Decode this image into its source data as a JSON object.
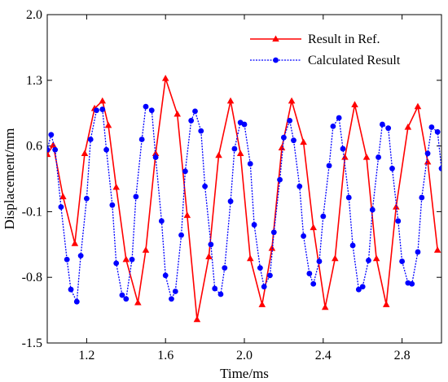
{
  "chart_data": {
    "type": "line",
    "title": "",
    "xlabel": "Time/ms",
    "ylabel": "Displacement/mm",
    "xlim": [
      1.0,
      3.0
    ],
    "ylim": [
      -1.5,
      2.0
    ],
    "x_ticks": [
      1.2,
      1.6,
      2.0,
      2.4,
      2.8
    ],
    "x_tick_labels": [
      "1.2",
      "1.6",
      "2.0",
      "2.4",
      "2.8"
    ],
    "y_ticks": [
      -1.5,
      -0.8,
      -0.1,
      0.6,
      1.3,
      2.0
    ],
    "y_tick_labels": [
      "-1.5",
      "-0.8",
      "-0.1",
      "0.6",
      "1.3",
      "2.0"
    ],
    "grid": false,
    "legend_position": "top-right",
    "series": [
      {
        "name": "Result in Ref.",
        "color": "#ff0000",
        "line_style": "solid",
        "marker": "triangle",
        "x": [
          1.0,
          1.03,
          1.08,
          1.14,
          1.19,
          1.24,
          1.28,
          1.31,
          1.35,
          1.4,
          1.46,
          1.5,
          1.55,
          1.6,
          1.66,
          1.71,
          1.76,
          1.82,
          1.87,
          1.93,
          1.98,
          2.03,
          2.09,
          2.14,
          2.19,
          2.24,
          2.3,
          2.35,
          2.41,
          2.46,
          2.51,
          2.56,
          2.62,
          2.67,
          2.72,
          2.77,
          2.83,
          2.88,
          2.93,
          2.98
        ],
        "y": [
          0.51,
          0.61,
          0.06,
          -0.44,
          0.52,
          1.0,
          1.08,
          0.82,
          0.16,
          -0.61,
          -1.07,
          -0.51,
          0.52,
          1.32,
          0.94,
          -0.14,
          -1.25,
          -0.58,
          0.5,
          1.08,
          0.52,
          -0.6,
          -1.09,
          -0.49,
          0.58,
          1.08,
          0.64,
          -0.27,
          -1.12,
          -0.6,
          0.48,
          1.04,
          0.48,
          -0.6,
          -1.09,
          -0.05,
          0.8,
          1.02,
          0.43,
          -0.51
        ]
      },
      {
        "name": "Calculated Result",
        "color": "#0000ff",
        "line_style": "dotted",
        "marker": "circle",
        "x": [
          1.0,
          1.02,
          1.04,
          1.07,
          1.1,
          1.12,
          1.15,
          1.17,
          1.2,
          1.22,
          1.25,
          1.28,
          1.3,
          1.33,
          1.35,
          1.38,
          1.4,
          1.43,
          1.45,
          1.48,
          1.5,
          1.53,
          1.55,
          1.58,
          1.6,
          1.63,
          1.65,
          1.68,
          1.7,
          1.73,
          1.75,
          1.78,
          1.8,
          1.83,
          1.85,
          1.88,
          1.9,
          1.93,
          1.95,
          1.98,
          2.0,
          2.03,
          2.05,
          2.08,
          2.1,
          2.13,
          2.15,
          2.18,
          2.2,
          2.23,
          2.25,
          2.28,
          2.3,
          2.33,
          2.35,
          2.38,
          2.4,
          2.43,
          2.45,
          2.48,
          2.5,
          2.53,
          2.55,
          2.58,
          2.6,
          2.63,
          2.65,
          2.68,
          2.7,
          2.73,
          2.75,
          2.78,
          2.8,
          2.83,
          2.85,
          2.88,
          2.9,
          2.93,
          2.95,
          2.98,
          3.0
        ],
        "y": [
          0.56,
          0.72,
          0.56,
          -0.05,
          -0.61,
          -0.93,
          -1.06,
          -0.57,
          0.04,
          0.67,
          0.98,
          0.99,
          0.56,
          -0.03,
          -0.65,
          -0.99,
          -1.03,
          -0.61,
          0.06,
          0.67,
          1.02,
          0.98,
          0.48,
          -0.2,
          -0.78,
          -1.03,
          -0.95,
          -0.35,
          0.33,
          0.87,
          0.97,
          0.76,
          0.17,
          -0.45,
          -0.92,
          -0.98,
          -0.7,
          0.01,
          0.57,
          0.85,
          0.83,
          0.41,
          -0.24,
          -0.7,
          -0.9,
          -0.78,
          -0.32,
          0.24,
          0.69,
          0.87,
          0.66,
          0.17,
          -0.36,
          -0.76,
          -0.87,
          -0.63,
          -0.15,
          0.39,
          0.81,
          0.9,
          0.57,
          0.05,
          -0.46,
          -0.93,
          -0.9,
          -0.62,
          -0.08,
          0.48,
          0.83,
          0.79,
          0.36,
          -0.2,
          -0.63,
          -0.86,
          -0.87,
          -0.53,
          0.05,
          0.52,
          0.8,
          0.75,
          0.36
        ]
      }
    ]
  }
}
